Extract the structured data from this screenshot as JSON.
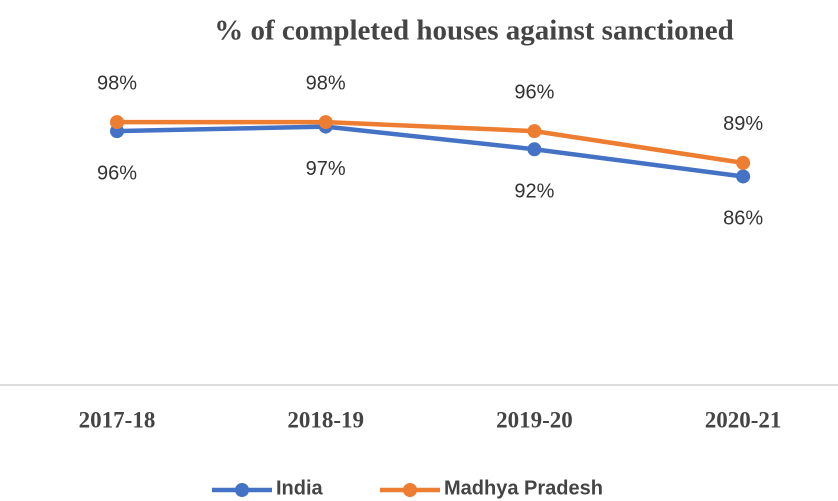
{
  "chart_data": {
    "type": "line",
    "title": "% of completed  houses against sanctioned",
    "categories": [
      "2017-18",
      "2018-19",
      "2019-20",
      "2020-21"
    ],
    "series": [
      {
        "name": "India",
        "color": "#4472c4",
        "values": [
          96,
          97,
          92,
          86
        ],
        "value_labels": [
          "96%",
          "97%",
          "92%",
          "86%"
        ]
      },
      {
        "name": "Madhya Pradesh",
        "color": "#ed7d31",
        "values": [
          98,
          98,
          96,
          89
        ],
        "value_labels": [
          "98%",
          "98%",
          "96%",
          "89%"
        ]
      }
    ],
    "ylim": [
      40,
      100
    ],
    "grid": false,
    "legend": "bottom"
  }
}
